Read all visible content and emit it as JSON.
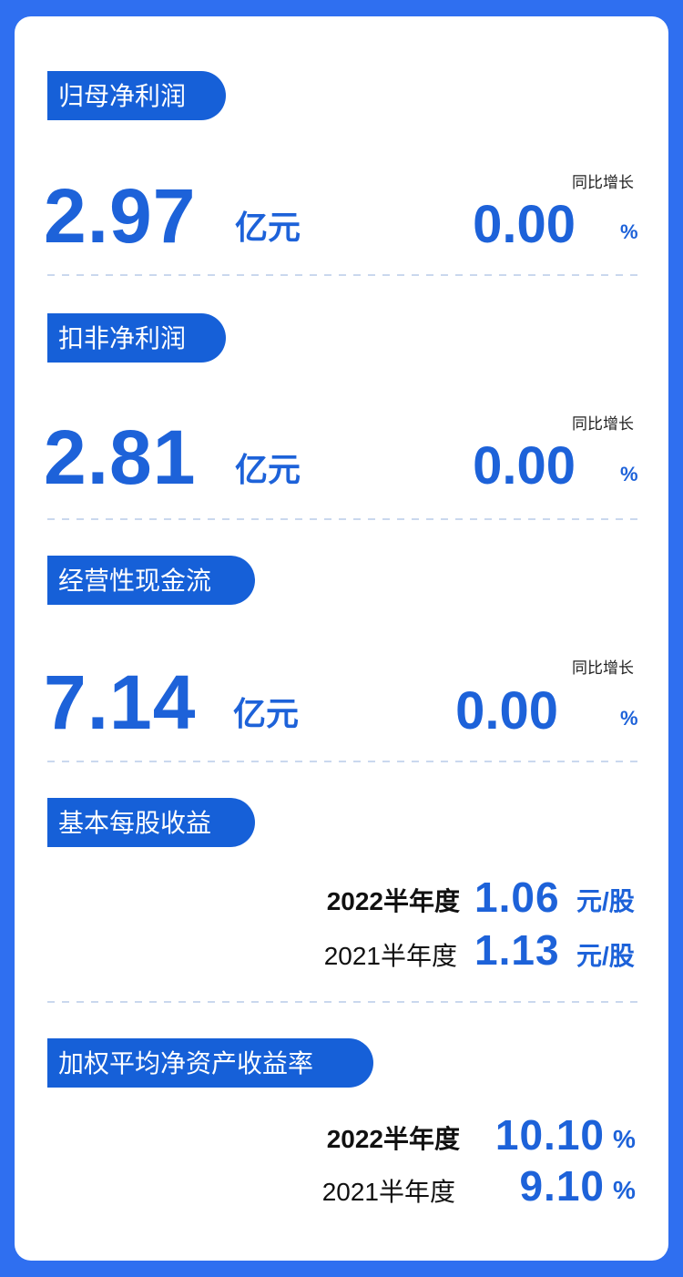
{
  "sections": [
    {
      "label": "归母净利润",
      "value": "2.97",
      "unit": "亿元",
      "yoy_label": "同比增长",
      "yoy": "0.00",
      "yoy_unit": "%"
    },
    {
      "label": "扣非净利润",
      "value": "2.81",
      "unit": "亿元",
      "yoy_label": "同比增长",
      "yoy": "0.00",
      "yoy_unit": "%"
    },
    {
      "label": "经营性现金流",
      "value": "7.14",
      "unit": "亿元",
      "yoy_label": "同比增长",
      "yoy": "0.00",
      "yoy_unit": "%"
    }
  ],
  "eps": {
    "label": "基本每股收益",
    "rows": [
      {
        "period": "2022半年度",
        "value": "1.06",
        "unit": "元/股"
      },
      {
        "period": "2021半年度",
        "value": "1.13",
        "unit": "元/股"
      }
    ]
  },
  "roe": {
    "label": "加权平均净资产收益率",
    "rows": [
      {
        "period": "2022半年度",
        "value": "10.10",
        "unit": "%"
      },
      {
        "period": "2021半年度",
        "value": "9.10",
        "unit": "%"
      }
    ]
  }
}
